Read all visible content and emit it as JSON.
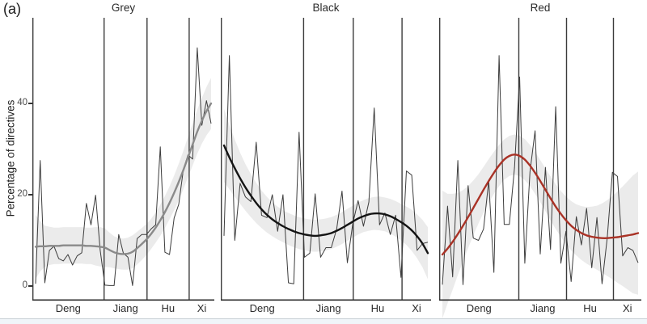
{
  "figure": {
    "corner_label": "(a)",
    "y_axis_title": "Percentage of directives"
  },
  "chart_data": {
    "type": "line",
    "title": "",
    "xlabel": "",
    "ylabel": "Percentage of directives",
    "y_ticks": [
      0,
      20,
      40
    ],
    "ylim": [
      0,
      58
    ],
    "x_points": 39,
    "eras": [
      "Deng",
      "Jiang",
      "Hu",
      "Xi"
    ],
    "era_boundaries_frac": [
      0.394,
      0.63,
      0.862
    ],
    "raw_line_color": "#3d3d3d",
    "band_color": "#d8d8d8",
    "legend": "thin line = yearly raw percentage, thick line = loess smooth with confidence band, vertical lines = leader era boundaries",
    "panels": [
      {
        "title": "Grey",
        "line_color": "#8a8a8a",
        "raw": [
          0.5,
          27.5,
          0.7,
          7.8,
          8.7,
          6.0,
          5.5,
          6.9,
          4.6,
          6.6,
          7.3,
          18.1,
          13.4,
          19.9,
          7.8,
          0.2,
          0.1,
          0.1,
          11.3,
          7.2,
          6.3,
          0.1,
          10.4,
          11.3,
          11.3,
          12.5,
          13.4,
          30.5,
          7.4,
          6.9,
          14.9,
          17.9,
          25.5,
          28.7,
          27.8,
          52.2,
          35.2,
          40.6,
          35.6
        ],
        "smooth": [
          8.6,
          8.7,
          8.7,
          8.8,
          8.8,
          8.8,
          8.9,
          8.9,
          8.9,
          8.9,
          8.9,
          8.8,
          8.8,
          8.7,
          8.6,
          8.4,
          7.9,
          7.4,
          7.1,
          7.0,
          7.1,
          7.5,
          8.3,
          9.2,
          10.2,
          11.4,
          12.8,
          14.4,
          16.2,
          18.2,
          20.4,
          22.8,
          25.4,
          28.2,
          31.0,
          33.8,
          36.2,
          38.3,
          40.0
        ],
        "ci": [
          7,
          5.5,
          4.5,
          4.2,
          4,
          4,
          4,
          4,
          4,
          4,
          4,
          4,
          4,
          4.2,
          4.3,
          4.2,
          3.8,
          3.5,
          3.4,
          3.4,
          3.5,
          3.6,
          3.6,
          3.5,
          3.4,
          3.3,
          3.3,
          3.4,
          3.5,
          3.6,
          3.8,
          4.0,
          4.2,
          4.4,
          4.6,
          4.8,
          5.0,
          5.3,
          5.6
        ]
      },
      {
        "title": "Black",
        "line_color": "#141414",
        "raw": [
          11,
          50.5,
          10,
          22.5,
          19.5,
          18.5,
          31.5,
          15.5,
          15,
          20,
          12,
          20,
          0.7,
          0.5,
          33.7,
          6.3,
          7.2,
          20.2,
          6.3,
          8.4,
          8.4,
          12.5,
          20.8,
          5.1,
          13.7,
          18.7,
          13.1,
          18.4,
          39,
          13.4,
          16,
          11.3,
          15.5,
          1.9,
          25.2,
          24.3,
          7.8,
          9.3,
          9.6
        ],
        "smooth": [
          30.8,
          28.2,
          25.8,
          23.6,
          21.6,
          19.8,
          18.2,
          16.8,
          15.6,
          14.6,
          13.8,
          13.1,
          12.5,
          12.0,
          11.6,
          11.3,
          11.1,
          11.0,
          11.1,
          11.3,
          11.6,
          12.1,
          12.7,
          13.4,
          14.1,
          14.8,
          15.3,
          15.7,
          15.9,
          15.9,
          15.7,
          15.3,
          14.7,
          14.0,
          13.2,
          12.2,
          10.9,
          9.3,
          7.2
        ],
        "ci": [
          8,
          7,
          6.3,
          5.6,
          5.1,
          4.7,
          4.4,
          4.1,
          3.9,
          3.7,
          3.6,
          3.5,
          3.5,
          3.5,
          3.5,
          3.5,
          3.5,
          3.5,
          3.5,
          3.5,
          3.5,
          3.5,
          3.5,
          3.5,
          3.5,
          3.5,
          3.5,
          3.6,
          3.6,
          3.7,
          3.7,
          3.8,
          3.9,
          4.0,
          4.2,
          4.5,
          4.8,
          5.2,
          5.7
        ]
      },
      {
        "title": "Red",
        "line_color": "#a93226",
        "raw": [
          0.3,
          17.5,
          2,
          27.5,
          0.3,
          22,
          10.5,
          10,
          12.5,
          23,
          3,
          50.5,
          13.5,
          13.5,
          26,
          45.8,
          5,
          25,
          34,
          7,
          26,
          8,
          39.3,
          5,
          12,
          1,
          15.2,
          9,
          17,
          4,
          15,
          0.5,
          10.5,
          24.9,
          24,
          6.6,
          8.4,
          7.8,
          5.1
        ],
        "smooth": [
          6.9,
          8.2,
          9.7,
          11.4,
          13.2,
          15.1,
          17.1,
          19.1,
          21.1,
          23.0,
          24.8,
          26.4,
          27.7,
          28.5,
          28.8,
          28.5,
          27.7,
          26.4,
          24.8,
          23.0,
          21.1,
          19.2,
          17.4,
          15.8,
          14.4,
          13.2,
          12.3,
          11.6,
          11.1,
          10.8,
          10.6,
          10.5,
          10.5,
          10.6,
          10.7,
          10.9,
          11.1,
          11.3,
          11.6
        ],
        "ci": [
          14,
          12,
          10.5,
          9,
          7.8,
          6.8,
          6,
          5.4,
          5,
          4.8,
          4.6,
          4.5,
          4.4,
          4.4,
          4.4,
          4.4,
          4.5,
          4.5,
          4.6,
          4.6,
          4.7,
          4.8,
          4.9,
          5.0,
          5.2,
          5.4,
          5.6,
          5.9,
          6.2,
          6.6,
          7.0,
          7.6,
          8.3,
          9.1,
          10.0,
          10.9,
          11.9,
          12.9,
          13.5
        ]
      }
    ]
  }
}
